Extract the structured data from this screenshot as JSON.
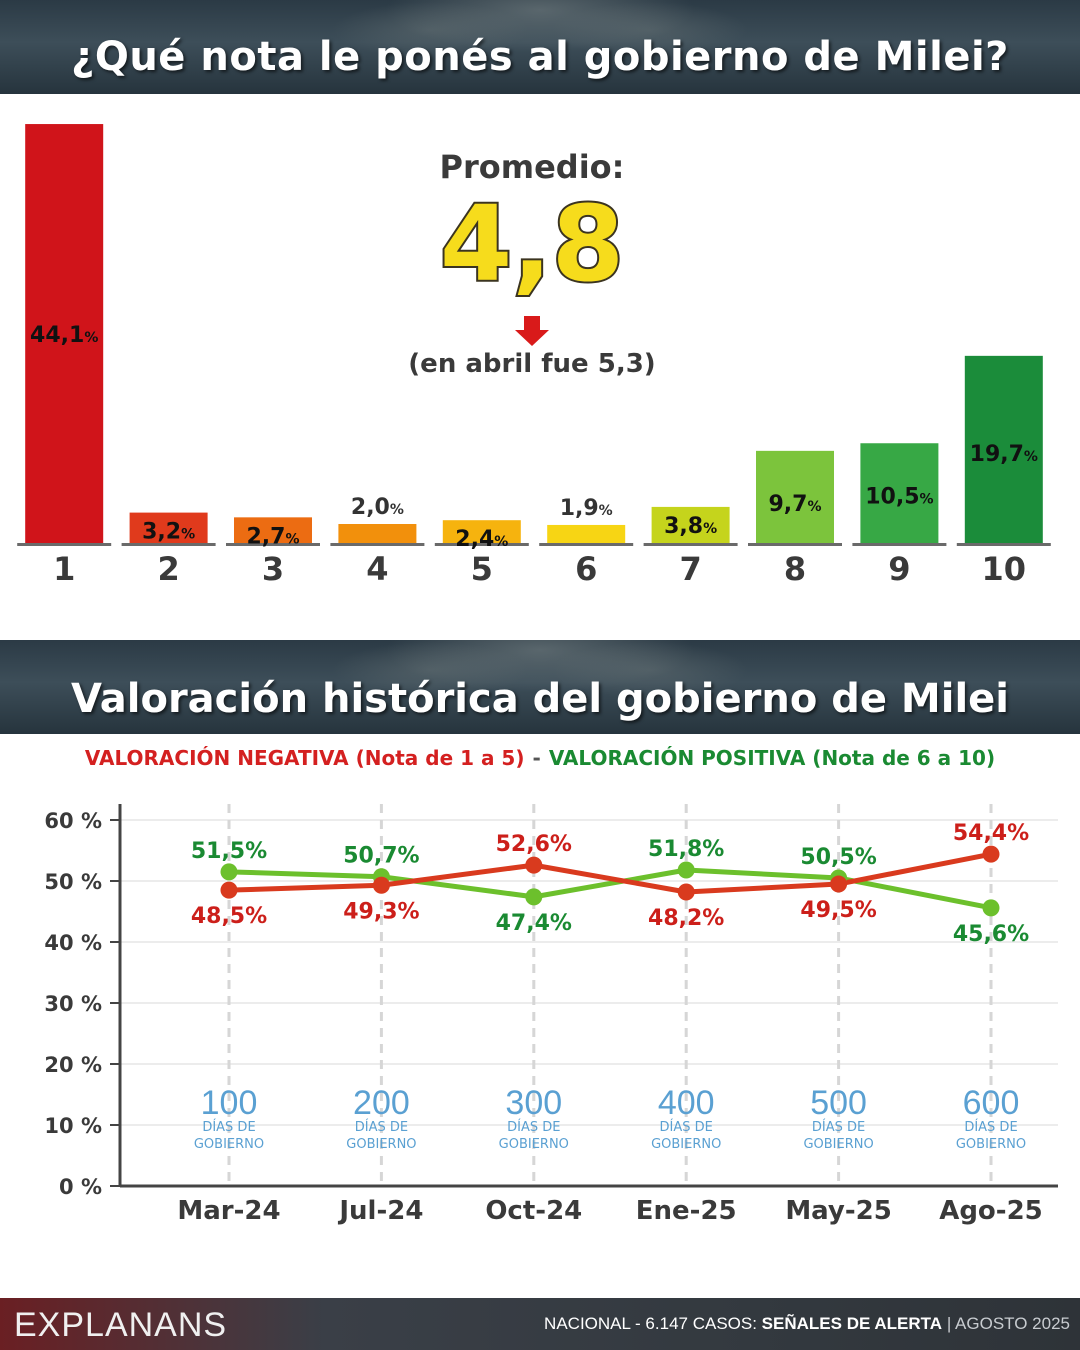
{
  "header": {
    "title": "¿Qué nota le ponés al gobierno de Milei?"
  },
  "average": {
    "label": "Promedio:",
    "value": "4,8",
    "previous": "(en abril fue 5,3)"
  },
  "section2": {
    "title": "Valoración histórica del gobierno de Milei"
  },
  "legend": {
    "negative": "VALORACIÓN NEGATIVA (Nota de 1 a 5)",
    "separator": "-",
    "positive": "VALORACIÓN POSITIVA (Nota de 6 a 10)"
  },
  "footer": {
    "logo": "EXPLANANS",
    "scope": "NACIONAL - 6.147 CASOS:",
    "series_name": "SEÑALES DE ALERTA",
    "divider": "|",
    "date": "AGOSTO 2025"
  },
  "colors": {
    "negative": "#d93a1e",
    "negative_text": "#cc1f1a",
    "positive": "#6cc02c",
    "positive_text": "#1a8a32",
    "average": "#f6dc1c"
  },
  "chart_data": [
    {
      "type": "bar",
      "categories": [
        "1",
        "2",
        "3",
        "4",
        "5",
        "6",
        "7",
        "8",
        "9",
        "10"
      ],
      "values": [
        44.1,
        3.2,
        2.7,
        2.0,
        2.4,
        1.9,
        3.8,
        9.7,
        10.5,
        19.7
      ],
      "labels": [
        "44,1",
        "3,2",
        "2,7",
        "2,0",
        "2,4",
        "1,9",
        "3,8",
        "9,7",
        "10,5",
        "19,7"
      ],
      "unit": "%",
      "colors": [
        "#d0141a",
        "#e03a1c",
        "#ec6c12",
        "#f2900c",
        "#f6b30e",
        "#f7d514",
        "#c5d41c",
        "#7cc43c",
        "#37a845",
        "#1b8c3a"
      ]
    },
    {
      "type": "line",
      "x": [
        "Mar-24",
        "Jul-24",
        "Oct-24",
        "Ene-25",
        "May-25",
        "Ago-25"
      ],
      "series": [
        {
          "name": "VALORACIÓN NEGATIVA (Nota de 1 a 5)",
          "values": [
            48.5,
            49.3,
            52.6,
            48.2,
            49.5,
            54.4
          ],
          "labels": [
            "48,5%",
            "49,3%",
            "52,6%",
            "48,2%",
            "49,5%",
            "54,4%"
          ]
        },
        {
          "name": "VALORACIÓN POSITIVA (Nota de 6 a 10)",
          "values": [
            51.5,
            50.7,
            47.4,
            51.8,
            50.5,
            45.6
          ],
          "labels": [
            "51,5%",
            "50,7%",
            "47,4%",
            "51,8%",
            "50,5%",
            "45,6%"
          ]
        }
      ],
      "ylim": [
        0,
        60
      ],
      "yticks": [
        "0 %",
        "10 %",
        "20 %",
        "30 %",
        "40 %",
        "50 %",
        "60 %"
      ],
      "milestones": [
        "100",
        "200",
        "300",
        "400",
        "500",
        "600"
      ],
      "milestone_caption": [
        "DÍAS DE",
        "GOBIERNO"
      ],
      "grid": true
    }
  ]
}
